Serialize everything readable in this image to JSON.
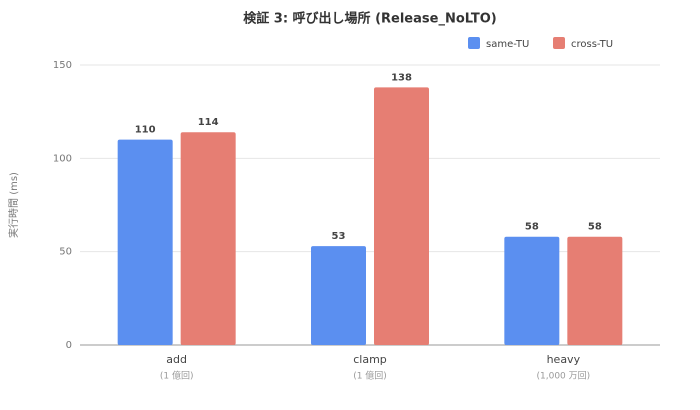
{
  "chart_data": {
    "type": "bar",
    "title": "検証 3: 呼び出し場所 (Release_NoLTO)",
    "y_label": "実行時間 (ms)",
    "categories": [
      "add",
      "clamp",
      "heavy"
    ],
    "category_notes": [
      "(1 億回)",
      "(1 億回)",
      "(1,000 万回)"
    ],
    "series": [
      {
        "name": "same-TU",
        "color": "#5b8ff0",
        "values": [
          110,
          53,
          58
        ]
      },
      {
        "name": "cross-TU",
        "color": "#e67e73",
        "values": [
          114,
          138,
          58
        ]
      }
    ],
    "ylim": [
      0,
      150
    ],
    "yticks": [
      0,
      50,
      100,
      150
    ],
    "grid": true,
    "legend": "top-right"
  }
}
